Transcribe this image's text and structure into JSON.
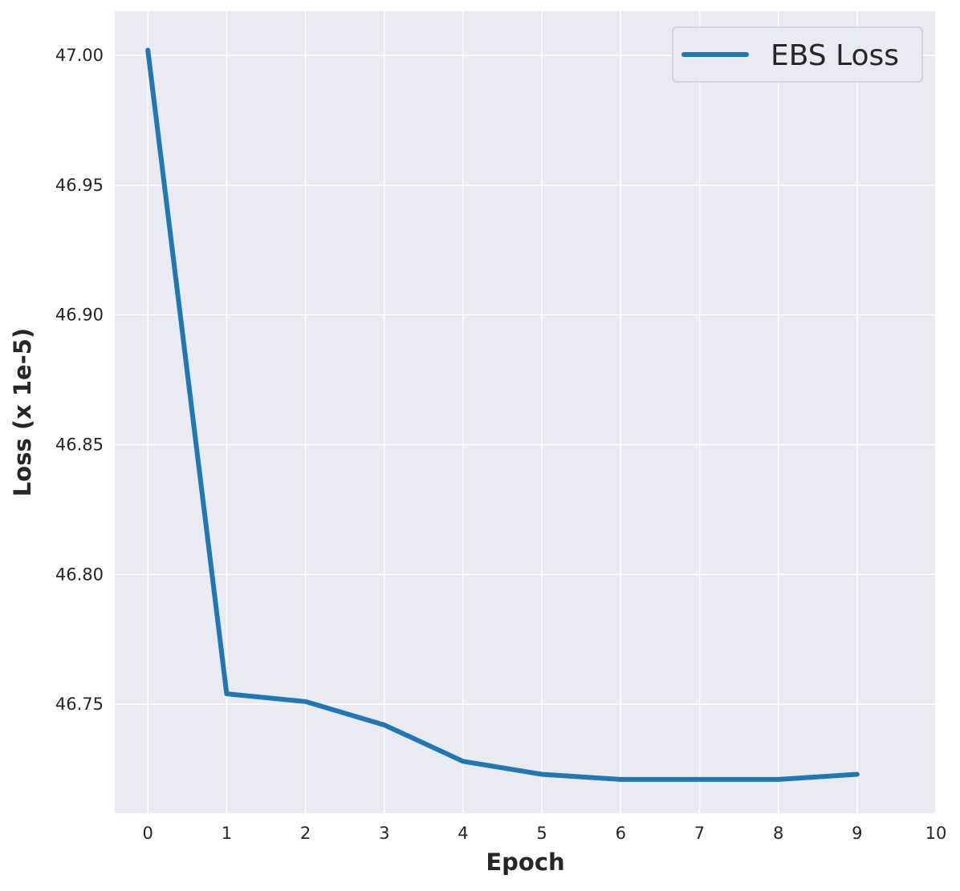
{
  "chart_data": {
    "type": "line",
    "title": "",
    "xlabel": "Epoch",
    "ylabel": "Loss (x 1e-5)",
    "xlim": [
      -0.42,
      10
    ],
    "ylim": [
      46.708,
      47.017
    ],
    "x_ticks": [
      0,
      1,
      2,
      3,
      4,
      5,
      6,
      7,
      8,
      9,
      10
    ],
    "x_tick_labels": [
      "0",
      "1",
      "2",
      "3",
      "4",
      "5",
      "6",
      "7",
      "8",
      "9",
      "10"
    ],
    "y_ticks": [
      46.75,
      46.8,
      46.85,
      46.9,
      46.95,
      47.0
    ],
    "y_tick_labels": [
      "46.75",
      "46.80",
      "46.85",
      "46.90",
      "46.95",
      "47.00"
    ],
    "grid": true,
    "legend_position": "top-right",
    "colors": {
      "plot_background": "#e9eaf2",
      "grid": "#ffffff",
      "line": "#1f77b4",
      "legend_border": "#cccccc"
    },
    "series": [
      {
        "name": "EBS Loss",
        "x": [
          0,
          1,
          2,
          3,
          4,
          5,
          6,
          7,
          8,
          9
        ],
        "y": [
          47.002,
          46.754,
          46.751,
          46.742,
          46.728,
          46.723,
          46.721,
          46.721,
          46.721,
          46.723
        ]
      }
    ]
  }
}
